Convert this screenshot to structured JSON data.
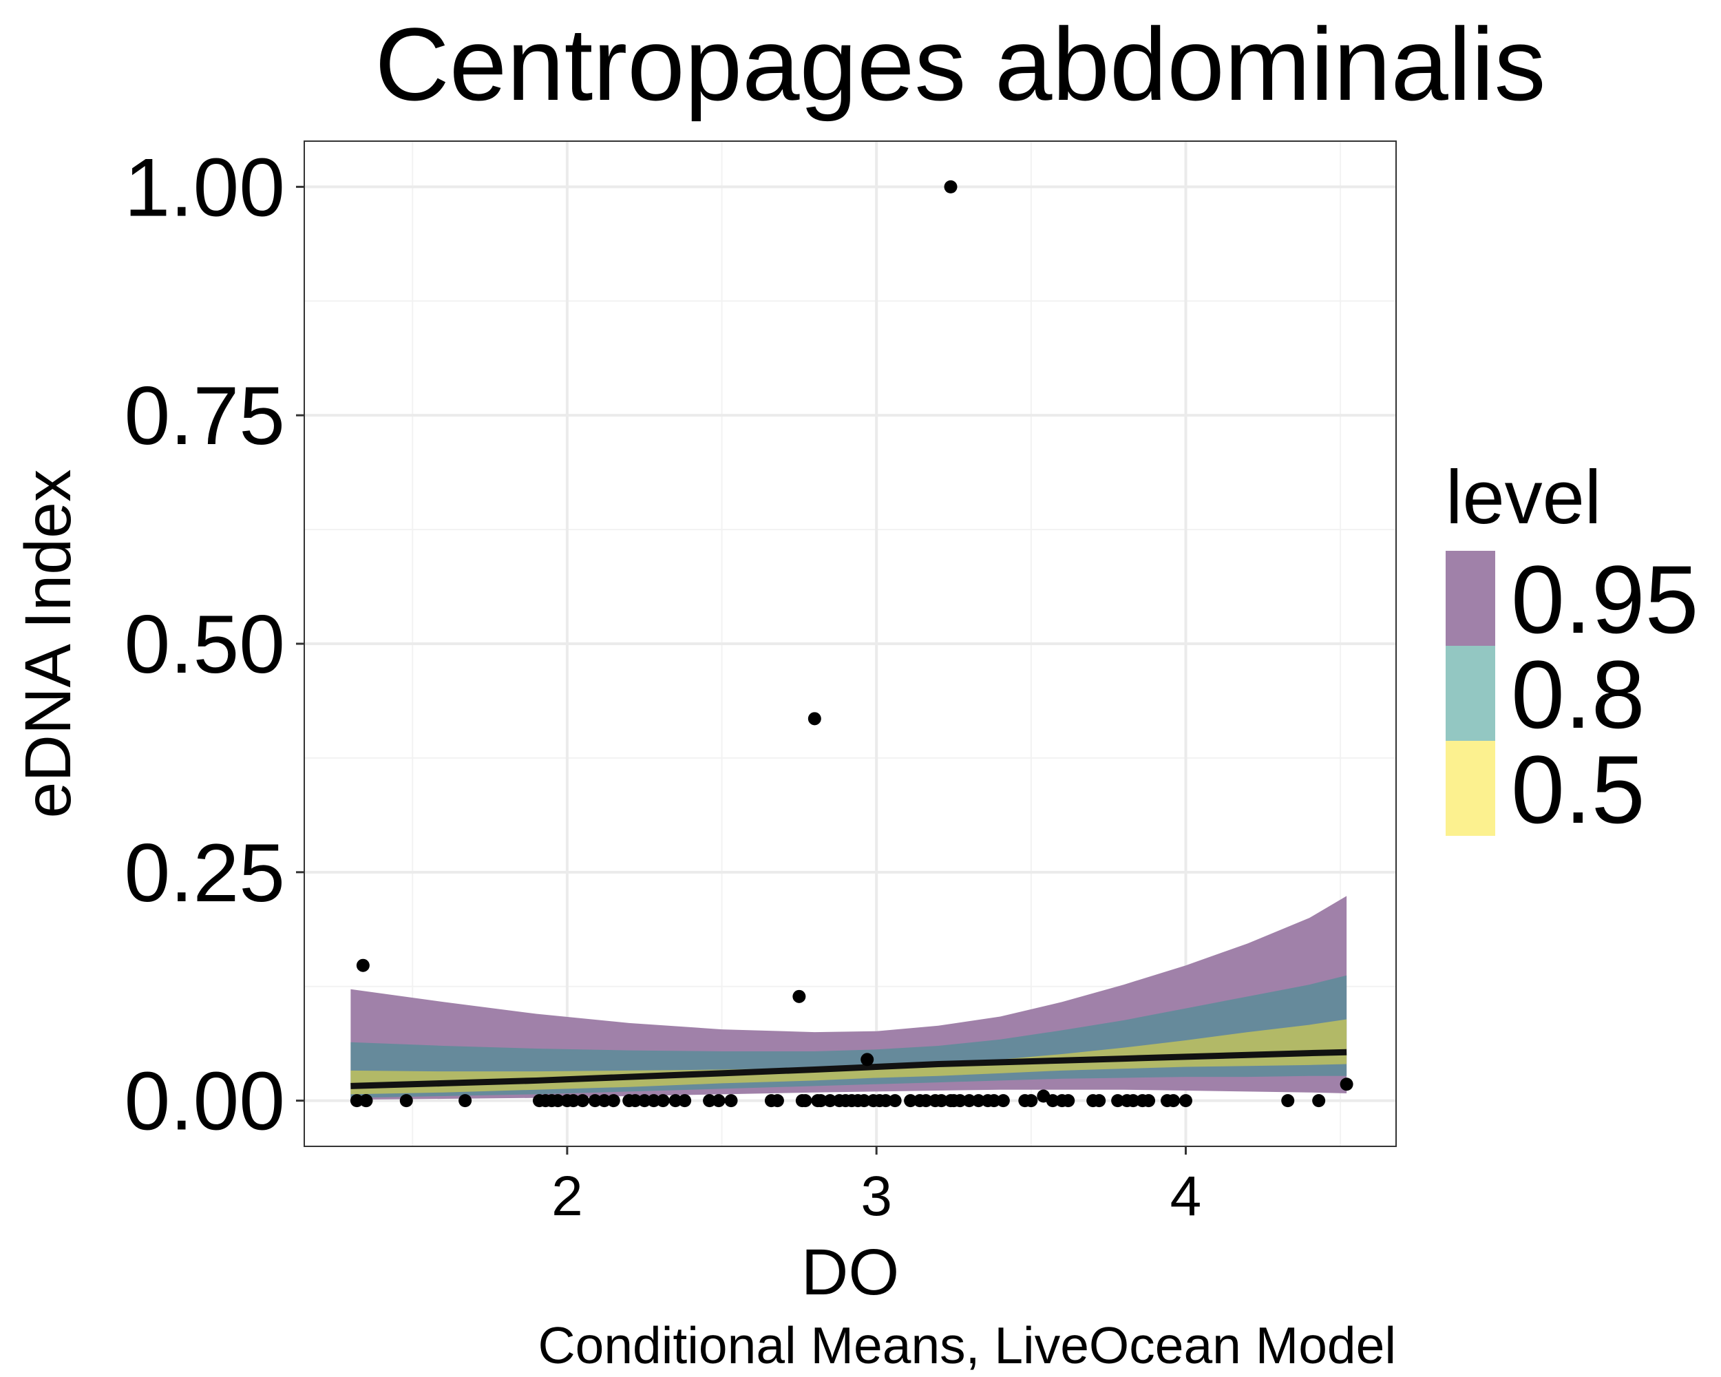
{
  "chart_data": {
    "type": "line",
    "title": "Centropages abdominalis",
    "xlabel": "DO",
    "ylabel": "eDNA Index",
    "caption": "Conditional Means, LiveOcean Model",
    "xlim": [
      1.15,
      4.68
    ],
    "ylim": [
      -0.05,
      1.05
    ],
    "x_ticks": [
      {
        "value": 2,
        "label": "2"
      },
      {
        "value": 3,
        "label": "3"
      },
      {
        "value": 4,
        "label": "4"
      }
    ],
    "y_ticks": [
      {
        "value": 0,
        "label": "0.00"
      },
      {
        "value": 0.25,
        "label": "0.25"
      },
      {
        "value": 0.5,
        "label": "0.50"
      },
      {
        "value": 0.75,
        "label": "0.75"
      },
      {
        "value": 1.0,
        "label": "1.00"
      }
    ],
    "grid": true,
    "legend": {
      "title": "level",
      "position": "right",
      "entries": [
        {
          "label": "0.95",
          "color": "#a081a9"
        },
        {
          "label": "0.8",
          "color": "#93c7c2"
        },
        {
          "label": "0.5",
          "color": "#fcf18f"
        }
      ]
    },
    "colors": {
      "band_95": "#a081a9",
      "band_80": "#668a9b",
      "band_50": "#b2b967",
      "mean_line": "#111111",
      "points": "#000000"
    },
    "bands": {
      "x": [
        1.3,
        1.6,
        1.9,
        2.2,
        2.5,
        2.8,
        3.0,
        3.2,
        3.4,
        3.6,
        3.8,
        4.0,
        4.2,
        4.4,
        4.52
      ],
      "level_95": {
        "lower": [
          0.001,
          0.002,
          0.003,
          0.005,
          0.007,
          0.009,
          0.01,
          0.011,
          0.012,
          0.012,
          0.012,
          0.011,
          0.01,
          0.009,
          0.008
        ],
        "upper": [
          0.122,
          0.108,
          0.095,
          0.085,
          0.078,
          0.075,
          0.076,
          0.082,
          0.092,
          0.108,
          0.127,
          0.148,
          0.172,
          0.2,
          0.224
        ]
      },
      "level_80": {
        "lower": [
          0.003,
          0.005,
          0.007,
          0.01,
          0.013,
          0.016,
          0.018,
          0.02,
          0.022,
          0.024,
          0.025,
          0.026,
          0.026,
          0.027,
          0.027
        ],
        "upper": [
          0.064,
          0.06,
          0.057,
          0.055,
          0.054,
          0.054,
          0.056,
          0.06,
          0.067,
          0.077,
          0.088,
          0.101,
          0.114,
          0.127,
          0.137
        ]
      },
      "level_50": {
        "lower": [
          0.007,
          0.009,
          0.012,
          0.015,
          0.019,
          0.022,
          0.025,
          0.027,
          0.03,
          0.033,
          0.035,
          0.037,
          0.038,
          0.039,
          0.04
        ],
        "upper": [
          0.033,
          0.032,
          0.032,
          0.033,
          0.034,
          0.036,
          0.038,
          0.041,
          0.045,
          0.051,
          0.058,
          0.066,
          0.075,
          0.083,
          0.089
        ]
      },
      "mean": [
        0.016,
        0.019,
        0.022,
        0.026,
        0.03,
        0.034,
        0.037,
        0.04,
        0.042,
        0.044,
        0.046,
        0.048,
        0.05,
        0.052,
        0.053
      ]
    },
    "points": {
      "x": [
        1.32,
        1.35,
        1.34,
        1.48,
        1.67,
        1.91,
        1.93,
        1.95,
        1.97,
        2.0,
        2.02,
        2.05,
        2.09,
        2.12,
        2.15,
        2.2,
        2.22,
        2.25,
        2.28,
        2.31,
        2.35,
        2.38,
        2.46,
        2.49,
        2.53,
        2.66,
        2.68,
        2.77,
        2.76,
        2.81,
        2.82,
        2.85,
        2.88,
        2.9,
        2.92,
        2.94,
        2.96,
        2.97,
        2.99,
        3.01,
        3.03,
        3.06,
        3.11,
        3.14,
        3.16,
        3.19,
        3.21,
        3.24,
        3.25,
        3.27,
        3.3,
        3.33,
        3.36,
        3.38,
        3.41,
        3.48,
        3.5,
        3.54,
        3.57,
        3.6,
        3.62,
        3.7,
        3.72,
        3.78,
        3.81,
        3.83,
        3.86,
        3.88,
        3.94,
        3.96,
        4.0,
        4.33,
        4.43,
        4.52,
        3.24,
        2.8,
        1.35,
        2.75
      ],
      "y": [
        0,
        0,
        0.148,
        0,
        0,
        0,
        0,
        0,
        0,
        0,
        0,
        0,
        0,
        0,
        0,
        0,
        0,
        0,
        0,
        0,
        0,
        0,
        0,
        0,
        0,
        0,
        0,
        0,
        0,
        0,
        0,
        0,
        0,
        0,
        0,
        0,
        0,
        0.045,
        0,
        0,
        0,
        0,
        0,
        0,
        0,
        0,
        0,
        0,
        0,
        0,
        0,
        0,
        0,
        0,
        0,
        0,
        0,
        0.005,
        0,
        0,
        0,
        0,
        0,
        0,
        0,
        0,
        0,
        0,
        0,
        0,
        0,
        0,
        0,
        0.018,
        1.0,
        0.418,
        0,
        0.114
      ]
    }
  }
}
